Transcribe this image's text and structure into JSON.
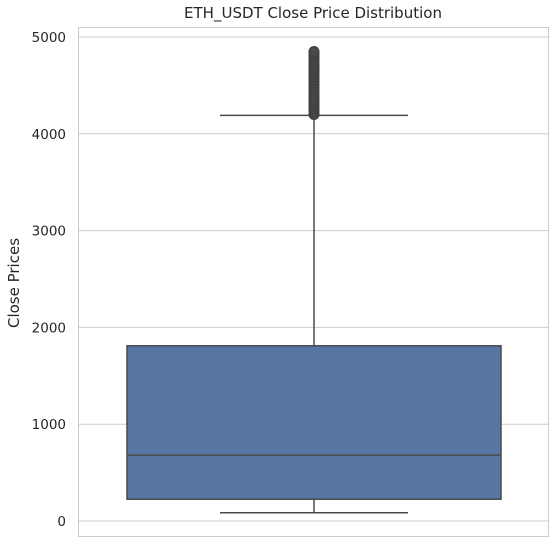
{
  "chart_data": {
    "type": "box",
    "title": "ETH_USDT Close Price Distribution",
    "xlabel": "",
    "ylabel": "Close Prices",
    "ylim": [
      -150,
      5080
    ],
    "yticks": [
      0,
      1000,
      2000,
      3000,
      4000,
      5000
    ],
    "grid": true,
    "box": {
      "color": "#5875a4",
      "whisker_low": 85,
      "q1": 225,
      "median": 680,
      "q3": 1810,
      "whisker_high": 4190,
      "outliers": [
        4200,
        4230,
        4260,
        4290,
        4320,
        4350,
        4380,
        4410,
        4440,
        4470,
        4500,
        4530,
        4560,
        4590,
        4620,
        4650,
        4680,
        4710,
        4740,
        4770,
        4800,
        4830,
        4850
      ]
    }
  }
}
